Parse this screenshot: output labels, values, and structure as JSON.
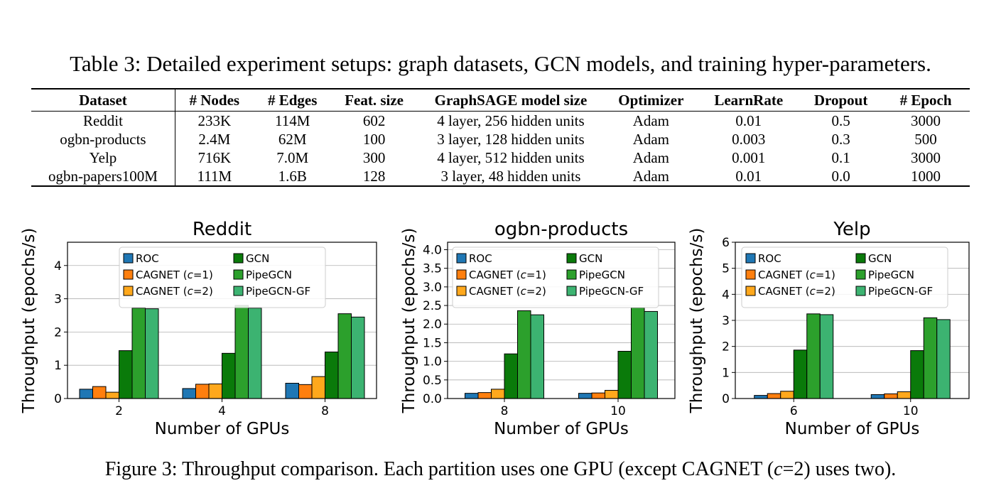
{
  "table": {
    "caption": "Table 3: Detailed experiment setups: graph datasets, GCN models, and training hyper-parameters.",
    "headers": [
      "Dataset",
      "# Nodes",
      "# Edges",
      "Feat. size",
      "GraphSAGE model size",
      "Optimizer",
      "LearnRate",
      "Dropout",
      "# Epoch"
    ],
    "rows": [
      [
        "Reddit",
        "233K",
        "114M",
        "602",
        "4 layer, 256 hidden units",
        "Adam",
        "0.01",
        "0.5",
        "3000"
      ],
      [
        "ogbn-products",
        "2.4M",
        "62M",
        "100",
        "3 layer, 128 hidden units",
        "Adam",
        "0.003",
        "0.3",
        "500"
      ],
      [
        "Yelp",
        "716K",
        "7.0M",
        "300",
        "4 layer, 512 hidden units",
        "Adam",
        "0.001",
        "0.1",
        "3000"
      ],
      [
        "ogbn-papers100M",
        "111M",
        "1.6B",
        "128",
        "3 layer, 48 hidden units",
        "Adam",
        "0.01",
        "0.0",
        "1000"
      ]
    ]
  },
  "figure": {
    "caption_prefix": "Figure 3: Throughput comparison. Each partition uses one GPU (except CAGNET (",
    "caption_var": "c",
    "caption_suffix": "=2) uses two)."
  },
  "legend": [
    {
      "name": "ROC",
      "color": "#1f77b4"
    },
    {
      "name": "GCN",
      "color": "#0a7a0a"
    },
    {
      "name": "CAGNET (c=1)",
      "color": "#ff7f0e"
    },
    {
      "name": "PipeGCN",
      "color": "#2ca02c"
    },
    {
      "name": "CAGNET (c=2)",
      "color": "#ffa81c"
    },
    {
      "name": "PipeGCN-GF",
      "color": "#3cb371"
    }
  ],
  "chart_data": [
    {
      "type": "bar",
      "title": "Reddit",
      "xlabel": "Number of GPUs",
      "ylabel": "Throughput (epochs/s)",
      "categories": [
        "2",
        "4",
        "8"
      ],
      "ylim": [
        0,
        4.7
      ],
      "yticks": [
        "0",
        "1",
        "2",
        "3",
        "4"
      ],
      "grid": true,
      "legend_position": "top",
      "series": [
        {
          "name": "ROC",
          "values": [
            0.28,
            0.3,
            0.46
          ]
        },
        {
          "name": "CAGNET (c=1)",
          "values": [
            0.36,
            0.43,
            0.42
          ]
        },
        {
          "name": "CAGNET (c=2)",
          "values": [
            0.19,
            0.44,
            0.66
          ]
        },
        {
          "name": "GCN",
          "values": [
            1.44,
            1.36,
            1.4
          ]
        },
        {
          "name": "PipeGCN",
          "values": [
            2.72,
            2.8,
            2.55
          ]
        },
        {
          "name": "PipeGCN-GF",
          "values": [
            2.7,
            2.72,
            2.45
          ]
        }
      ]
    },
    {
      "type": "bar",
      "title": "ogbn-products",
      "xlabel": "Number of GPUs",
      "ylabel": "Throughput (epochs/s)",
      "categories": [
        "8",
        "10"
      ],
      "ylim": [
        0,
        4.2
      ],
      "yticks": [
        "0.0",
        "0.5",
        "1.0",
        "1.5",
        "2.0",
        "2.5",
        "3.0",
        "3.5",
        "4.0"
      ],
      "grid": true,
      "legend_position": "top",
      "series": [
        {
          "name": "ROC",
          "values": [
            0.14,
            0.14
          ]
        },
        {
          "name": "CAGNET (c=1)",
          "values": [
            0.16,
            0.15
          ]
        },
        {
          "name": "CAGNET (c=2)",
          "values": [
            0.25,
            0.22
          ]
        },
        {
          "name": "GCN",
          "values": [
            1.2,
            1.27
          ]
        },
        {
          "name": "PipeGCN",
          "values": [
            2.36,
            2.44
          ]
        },
        {
          "name": "PipeGCN-GF",
          "values": [
            2.25,
            2.34
          ]
        }
      ]
    },
    {
      "type": "bar",
      "title": "Yelp",
      "xlabel": "Number of GPUs",
      "ylabel": "Throughput (epochs/s)",
      "categories": [
        "6",
        "10"
      ],
      "ylim": [
        0,
        6
      ],
      "yticks": [
        "0",
        "1",
        "2",
        "3",
        "4",
        "5",
        "6"
      ],
      "grid": true,
      "legend_position": "top",
      "series": [
        {
          "name": "ROC",
          "values": [
            0.12,
            0.15
          ]
        },
        {
          "name": "CAGNET (c=1)",
          "values": [
            0.19,
            0.18
          ]
        },
        {
          "name": "CAGNET (c=2)",
          "values": [
            0.28,
            0.26
          ]
        },
        {
          "name": "GCN",
          "values": [
            1.86,
            1.84
          ]
        },
        {
          "name": "PipeGCN",
          "values": [
            3.25,
            3.1
          ]
        },
        {
          "name": "PipeGCN-GF",
          "values": [
            3.22,
            3.03
          ]
        }
      ]
    }
  ]
}
